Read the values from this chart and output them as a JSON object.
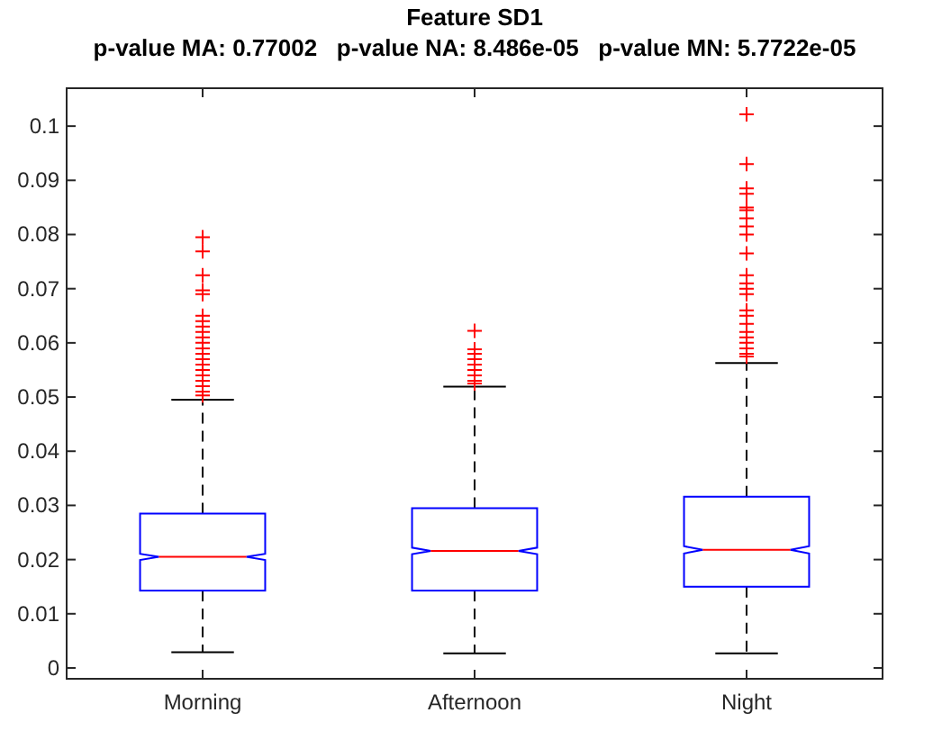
{
  "chart_data": {
    "type": "box",
    "title": "Feature SD1",
    "subtitle": "p-value MA: 0.77002   p-value NA: 8.486e-05   p-value MN: 5.7722e-05",
    "categories": [
      "Morning",
      "Afternoon",
      "Night"
    ],
    "ylim": [
      -0.002,
      0.107
    ],
    "yticks": [
      0,
      0.01,
      0.02,
      0.03,
      0.04,
      0.05,
      0.06,
      0.07,
      0.08,
      0.09,
      0.1
    ],
    "grid": false,
    "boxes": [
      {
        "low": 0.0029,
        "q1": 0.0143,
        "median": 0.0205,
        "q3": 0.0285,
        "high": 0.0495,
        "outliers": [
          0.0795,
          0.0769,
          0.0725,
          0.0697,
          0.069,
          0.065,
          0.064,
          0.063,
          0.062,
          0.061,
          0.06,
          0.059,
          0.058,
          0.057,
          0.056,
          0.055,
          0.054,
          0.053,
          0.052,
          0.051,
          0.0503
        ]
      },
      {
        "low": 0.0027,
        "q1": 0.0143,
        "median": 0.0216,
        "q3": 0.0295,
        "high": 0.0519,
        "outliers": [
          0.0622,
          0.0588,
          0.058,
          0.057,
          0.056,
          0.055,
          0.054,
          0.053,
          0.0525
        ]
      },
      {
        "low": 0.0027,
        "q1": 0.015,
        "median": 0.0218,
        "q3": 0.0316,
        "high": 0.0563,
        "outliers": [
          0.1022,
          0.093,
          0.0885,
          0.0875,
          0.085,
          0.0845,
          0.083,
          0.0815,
          0.08,
          0.0765,
          0.0725,
          0.071,
          0.07,
          0.069,
          0.066,
          0.065,
          0.0635,
          0.062,
          0.061,
          0.06,
          0.059,
          0.058,
          0.0575
        ]
      }
    ]
  }
}
